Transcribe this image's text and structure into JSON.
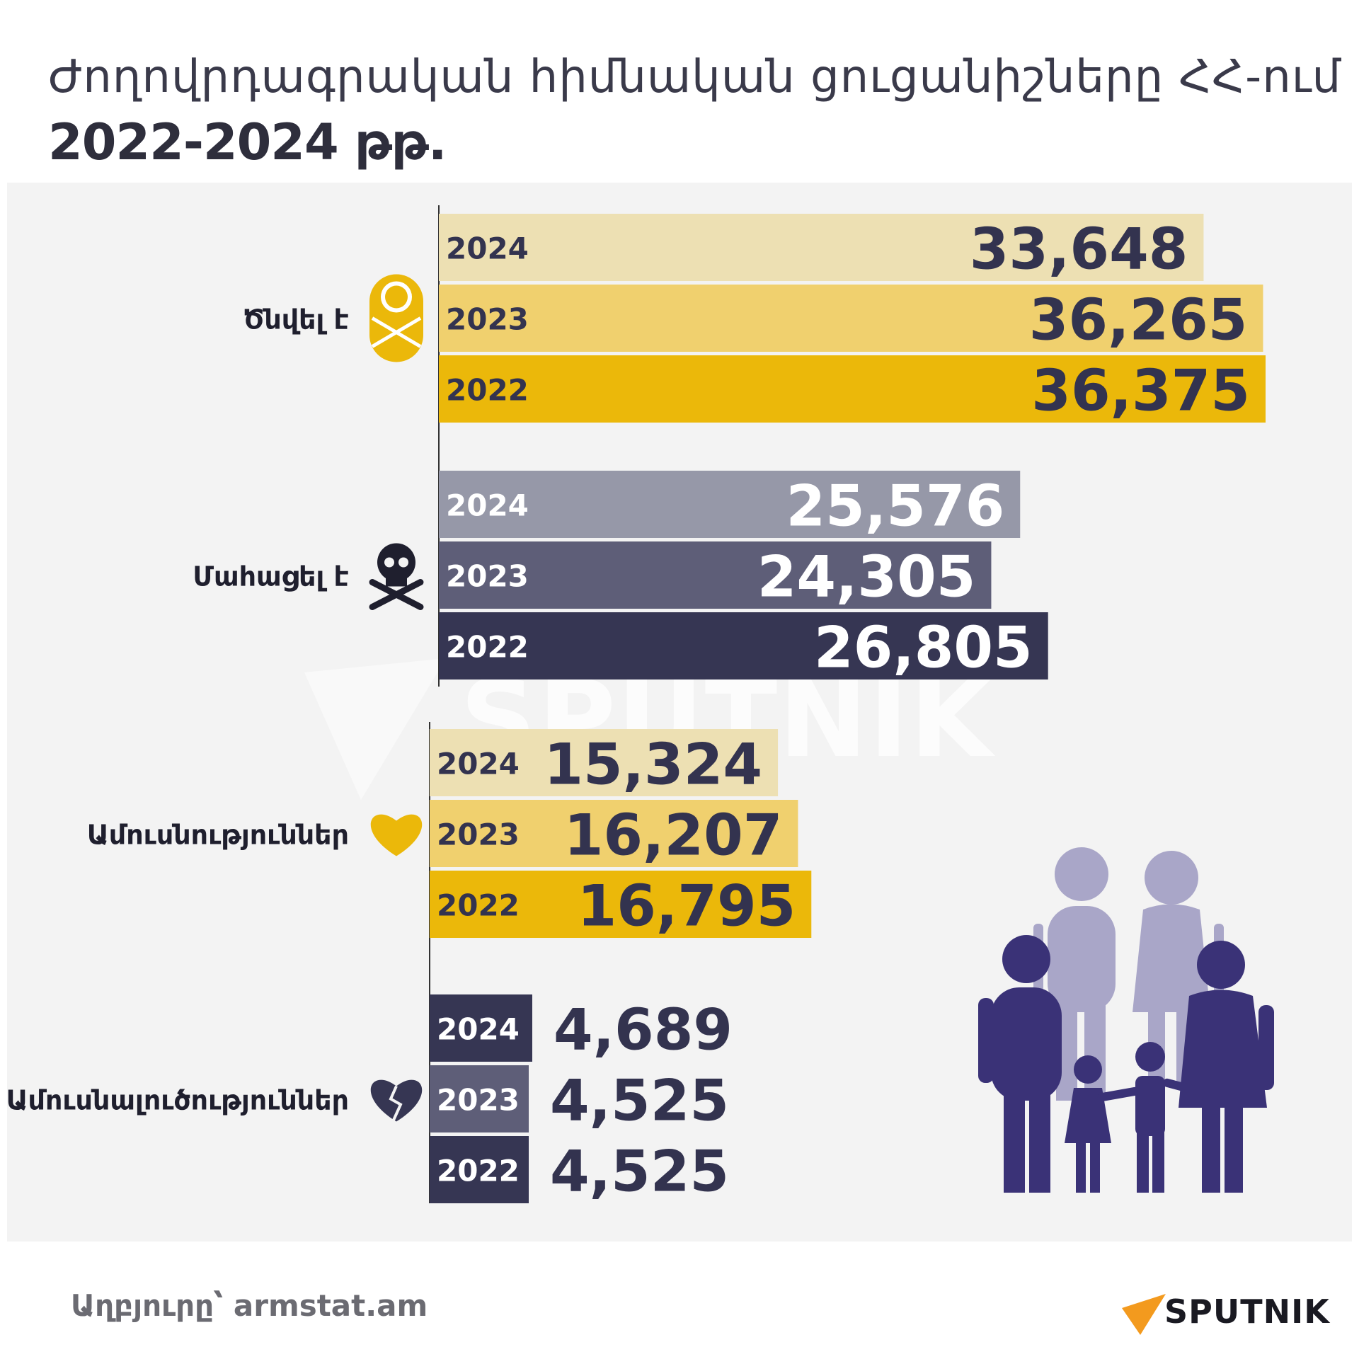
{
  "title": {
    "line1": "Ժողովրդագրական հիմնական ցուցանիշները ՀՀ-ում",
    "line2": "2022-2024 թթ."
  },
  "source": "Աղբյուրը՝ armstat.am",
  "brand": "SPUTNIK",
  "chart_data": {
    "type": "bar",
    "orientation": "horizontal",
    "categories": [
      "Ծնվել է",
      "Մահացել է",
      "Ամուսնություններ",
      "Ամուսնալուծություններ"
    ],
    "icons": [
      "baby-icon",
      "skull-crossbones-icon",
      "heart-icon",
      "broken-heart-icon"
    ],
    "series_years": [
      "2024",
      "2023",
      "2022"
    ],
    "groups": [
      {
        "label": "Ծնվել է",
        "icon": "baby-icon",
        "bars": [
          {
            "year": "2024",
            "value": 33648,
            "value_label": "33,648",
            "color": "#ede0b3"
          },
          {
            "year": "2023",
            "value": 36265,
            "value_label": "36,265",
            "color": "#f0d06e"
          },
          {
            "year": "2022",
            "value": 36375,
            "value_label": "36,375",
            "color": "#ebb80a"
          }
        ]
      },
      {
        "label": "Մահացել է",
        "icon": "skull-crossbones-icon",
        "bars": [
          {
            "year": "2024",
            "value": 25576,
            "value_label": "25,576",
            "color": "#9698a8"
          },
          {
            "year": "2023",
            "value": 24305,
            "value_label": "24,305",
            "color": "#5e5e78"
          },
          {
            "year": "2022",
            "value": 26805,
            "value_label": "26,805",
            "color": "#363653"
          }
        ]
      },
      {
        "label": "Ամուսնություններ",
        "icon": "heart-icon",
        "bars": [
          {
            "year": "2024",
            "value": 15324,
            "value_label": "15,324",
            "color": "#ede0b3"
          },
          {
            "year": "2023",
            "value": 16207,
            "value_label": "16,207",
            "color": "#f0d06e"
          },
          {
            "year": "2022",
            "value": 16795,
            "value_label": "16,795",
            "color": "#ebb80a"
          }
        ]
      },
      {
        "label": "Ամուսնալուծություններ",
        "icon": "broken-heart-icon",
        "bars": [
          {
            "year": "2024",
            "value": 4689,
            "value_label": "4,689",
            "color": "#363653"
          },
          {
            "year": "2023",
            "value": 4525,
            "value_label": "4,525",
            "color": "#5e5e78"
          },
          {
            "year": "2022",
            "value": 4525,
            "value_label": "4,525",
            "color": "#363653"
          }
        ]
      }
    ]
  }
}
